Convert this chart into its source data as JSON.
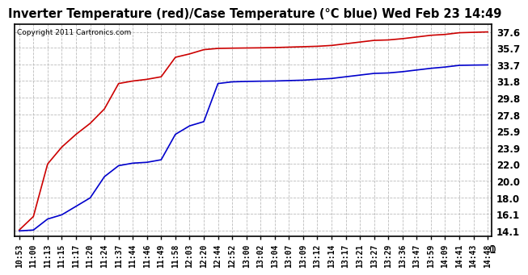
{
  "title": "Inverter Temperature (red)/Case Temperature (°C blue) Wed Feb 23 14:49",
  "copyright": "Copyright 2011 Cartronics.com",
  "yticks": [
    14.1,
    16.1,
    18.0,
    20.0,
    22.0,
    23.9,
    25.9,
    27.8,
    29.8,
    31.8,
    33.7,
    35.7,
    37.6
  ],
  "xtick_labels": [
    "10:53",
    "11:00",
    "11:13",
    "11:15",
    "11:17",
    "11:20",
    "11:24",
    "11:37",
    "11:44",
    "11:46",
    "11:49",
    "11:58",
    "12:03",
    "12:20",
    "12:44",
    "12:52",
    "13:00",
    "13:02",
    "13:04",
    "13:07",
    "13:09",
    "13:12",
    "13:14",
    "13:17",
    "13:21",
    "13:27",
    "13:29",
    "13:36",
    "13:47",
    "13:59",
    "14:09",
    "14:41",
    "14:43",
    "14:48"
  ],
  "red_y": [
    14.2,
    15.8,
    22.0,
    24.0,
    25.5,
    26.8,
    28.5,
    31.5,
    31.8,
    32.0,
    32.3,
    34.6,
    35.0,
    35.5,
    35.65,
    35.68,
    35.7,
    35.72,
    35.75,
    35.8,
    35.85,
    35.9,
    36.0,
    36.2,
    36.4,
    36.6,
    36.65,
    36.8,
    37.0,
    37.2,
    37.3,
    37.5,
    37.55,
    37.6
  ],
  "blue_y": [
    14.1,
    14.2,
    15.5,
    16.0,
    17.0,
    18.0,
    20.5,
    21.8,
    22.1,
    22.2,
    22.5,
    25.5,
    26.5,
    27.0,
    31.5,
    31.7,
    31.75,
    31.78,
    31.8,
    31.85,
    31.9,
    32.0,
    32.1,
    32.3,
    32.5,
    32.7,
    32.75,
    32.9,
    33.1,
    33.3,
    33.45,
    33.65,
    33.68,
    33.7
  ],
  "red_color": "#cc0000",
  "blue_color": "#0000cc",
  "bg_color": "#ffffff",
  "plot_bg": "#ffffff",
  "grid_color": "#bbbbbb",
  "title_fontsize": 10.5,
  "ylabel_fontsize": 8.5,
  "xlabel_fontsize": 7,
  "copyright_fontsize": 6.5,
  "ylim": [
    13.5,
    38.5
  ],
  "line_width": 1.2
}
